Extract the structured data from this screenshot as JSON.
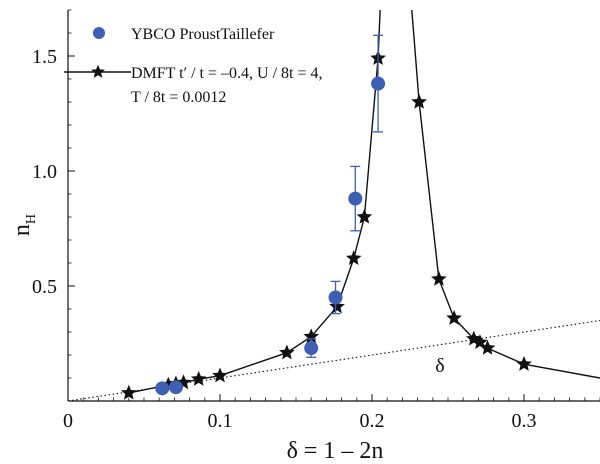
{
  "chart_data": {
    "type": "scatter",
    "xlabel": "δ = 1 – 2n",
    "ylabel": "n_H",
    "xlim": [
      0,
      0.35
    ],
    "ylim": [
      0,
      1.7
    ],
    "x_ticks": [
      {
        "value": 0,
        "label": "0"
      },
      {
        "value": 0.1,
        "label": "0.1"
      },
      {
        "value": 0.2,
        "label": "0.2"
      },
      {
        "value": 0.3,
        "label": "0.3"
      }
    ],
    "y_ticks": [
      {
        "value": 0.5,
        "label": "0.5"
      },
      {
        "value": 1.0,
        "label": "1.0"
      },
      {
        "value": 1.5,
        "label": "1.5"
      }
    ],
    "legend": [
      {
        "line1": "YBCO ProustTaillefer",
        "line2": ""
      },
      {
        "line1": "DMFT t′ / t = –0.4, U / 8t = 4,",
        "line2": "T / 8t = 0.0012"
      }
    ],
    "annotation": "δ",
    "colors": {
      "ybco": "#3f5fb5",
      "dmft": "#111111",
      "error": "#3f5fb5"
    },
    "series": [
      {
        "marker": "circle",
        "points": [
          {
            "x": 0.062,
            "y": 0.055
          },
          {
            "x": 0.071,
            "y": 0.06
          },
          {
            "x": 0.16,
            "y": 0.23,
            "err": 0.04
          },
          {
            "x": 0.176,
            "y": 0.45,
            "err": 0.07
          },
          {
            "x": 0.189,
            "y": 0.88,
            "err": 0.14
          },
          {
            "x": 0.204,
            "y": 1.38,
            "err": 0.21
          }
        ]
      },
      {
        "marker": "star",
        "line": "solid",
        "segments": [
          [
            {
              "x": 0.04,
              "y": 0.035
            },
            {
              "x": 0.066,
              "y": 0.07
            },
            {
              "x": 0.071,
              "y": 0.075
            },
            {
              "x": 0.076,
              "y": 0.08
            },
            {
              "x": 0.086,
              "y": 0.095
            },
            {
              "x": 0.1,
              "y": 0.11
            },
            {
              "x": 0.144,
              "y": 0.21
            },
            {
              "x": 0.16,
              "y": 0.28
            },
            {
              "x": 0.177,
              "y": 0.41
            },
            {
              "x": 0.188,
              "y": 0.62
            },
            {
              "x": 0.195,
              "y": 0.8
            },
            {
              "x": 0.204,
              "y": 1.49
            },
            {
              "x": 0.206,
              "y": 1.8
            }
          ],
          [
            {
              "x": 0.225,
              "y": 1.8
            },
            {
              "x": 0.231,
              "y": 1.3
            },
            {
              "x": 0.244,
              "y": 0.53
            },
            {
              "x": 0.254,
              "y": 0.36
            },
            {
              "x": 0.267,
              "y": 0.27
            },
            {
              "x": 0.271,
              "y": 0.255
            },
            {
              "x": 0.276,
              "y": 0.23
            },
            {
              "x": 0.3,
              "y": 0.16
            },
            {
              "x": 0.35,
              "y": 0.1
            }
          ]
        ],
        "hidden_marker_points": [
          {
            "x": 0.206,
            "y": 1.8
          },
          {
            "x": 0.225,
            "y": 1.8
          },
          {
            "x": 0.35,
            "y": 0.1
          }
        ]
      },
      {
        "line": "dotted",
        "points": [
          {
            "x": 0,
            "y": 0
          },
          {
            "x": 0.35,
            "y": 0.35
          }
        ]
      }
    ]
  }
}
